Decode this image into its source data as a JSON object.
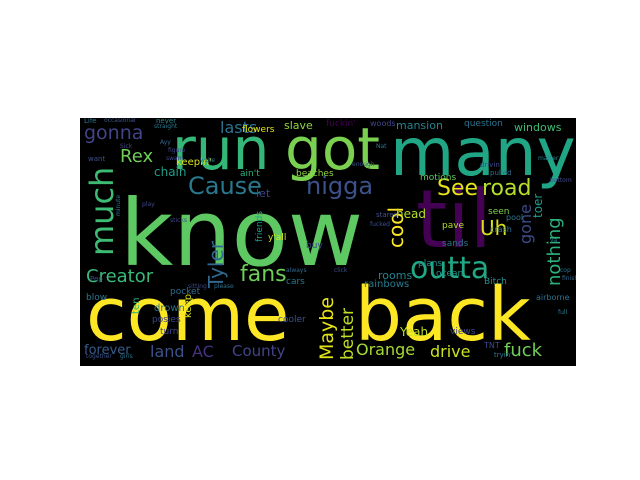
{
  "figure": {
    "background_color": "#ffffff",
    "cloud_background_color": "#000000"
  },
  "word_cloud": {
    "words": [
      {
        "key": "come",
        "text": "come",
        "color": "#fde725"
      },
      {
        "key": "back",
        "text": "back",
        "color": "#fde725"
      },
      {
        "key": "know",
        "text": "know",
        "color": "#5ec962"
      },
      {
        "key": "many",
        "text": "many",
        "color": "#21a685"
      },
      {
        "key": "got",
        "text": "got",
        "color": "#7ad151"
      },
      {
        "key": "run",
        "text": "run",
        "color": "#35b779"
      },
      {
        "key": "til",
        "text": "til",
        "color": "#440154"
      },
      {
        "key": "outta",
        "text": "outta",
        "color": "#22a884"
      },
      {
        "key": "much",
        "text": "much",
        "color": "#3fbc73"
      },
      {
        "key": "nigga",
        "text": "nigga",
        "color": "#3b528b"
      },
      {
        "key": "Cause",
        "text": "Cause",
        "color": "#2a788e"
      },
      {
        "key": "See",
        "text": "See",
        "color": "#e5e419"
      },
      {
        "key": "road",
        "text": "road",
        "color": "#b5de2b"
      },
      {
        "key": "gonna",
        "text": "gonna",
        "color": "#414487"
      },
      {
        "key": "Rex",
        "text": "Rex",
        "color": "#6ece58"
      },
      {
        "key": "lasts",
        "text": "lasts",
        "color": "#2c728e"
      },
      {
        "key": "Creator",
        "text": "Creator",
        "color": "#38b977"
      },
      {
        "key": "Tyler",
        "text": "Tyler",
        "color": "#31688e"
      },
      {
        "key": "fans",
        "text": "fans",
        "color": "#6ece58"
      },
      {
        "key": "cool",
        "text": "cool",
        "color": "#fde725"
      },
      {
        "key": "Uh",
        "text": "Uh",
        "color": "#d8e219"
      },
      {
        "key": "gone",
        "text": "gone",
        "color": "#3e4a89"
      },
      {
        "key": "nothing",
        "text": "nothing",
        "color": "#2db27d"
      },
      {
        "key": "toer",
        "text": "toer",
        "color": "#1f9e89"
      },
      {
        "key": "Maybe",
        "text": "Maybe",
        "color": "#e5e419"
      },
      {
        "key": "better",
        "text": "better",
        "color": "#c2df23"
      },
      {
        "key": "Orange",
        "text": "Orange",
        "color": "#a5db36"
      },
      {
        "key": "drive",
        "text": "drive",
        "color": "#cae11f"
      },
      {
        "key": "fuck",
        "text": "fuck",
        "color": "#6ece58"
      },
      {
        "key": "land",
        "text": "land",
        "color": "#3b528b"
      },
      {
        "key": "AC",
        "text": "AC",
        "color": "#46327e"
      },
      {
        "key": "County",
        "text": "County",
        "color": "#414487"
      },
      {
        "key": "forever",
        "text": "forever",
        "color": "#365c8d"
      },
      {
        "key": "Yeah",
        "text": "Yeah",
        "color": "#bddf26"
      },
      {
        "key": "head",
        "text": "head",
        "color": "#b5de2b"
      },
      {
        "key": "keepin",
        "text": "keepin'",
        "color": "#d8e219"
      },
      {
        "key": "chain",
        "text": "chain",
        "color": "#1f9e89"
      },
      {
        "key": "let",
        "text": "let",
        "color": "#414487"
      },
      {
        "key": "keep",
        "text": "keep",
        "color": "#d8e219"
      },
      {
        "key": "rooms",
        "text": "rooms",
        "color": "#26828e"
      },
      {
        "key": "rainbows",
        "text": "rainbows",
        "color": "#287c8e"
      },
      {
        "key": "drown",
        "text": "drown",
        "color": "#2c728e"
      },
      {
        "key": "posies",
        "text": "posies",
        "color": "#404688"
      },
      {
        "key": "turn",
        "text": "turn",
        "color": "#3e4989"
      },
      {
        "key": "ten",
        "text": "ten",
        "color": "#35b779"
      },
      {
        "key": "pocket",
        "text": "pocket",
        "color": "#2e6e8e"
      },
      {
        "key": "blow",
        "text": "blow",
        "color": "#2a788e"
      },
      {
        "key": "slave",
        "text": "slave",
        "color": "#8fd744"
      },
      {
        "key": "mansion",
        "text": "mansion",
        "color": "#25848e"
      },
      {
        "key": "windows",
        "text": "windows",
        "color": "#3fbc73"
      },
      {
        "key": "flowers",
        "text": "flowers",
        "color": "#e5e419"
      },
      {
        "key": "motions",
        "text": "motions",
        "color": "#5ec962"
      },
      {
        "key": "plans",
        "text": "plans",
        "color": "#1f958b"
      },
      {
        "key": "ocean",
        "text": "ocean",
        "color": "#1f988b"
      },
      {
        "key": "seen",
        "text": "seen",
        "color": "#7ad151"
      },
      {
        "key": "pave",
        "text": "pave",
        "color": "#b5de2b"
      },
      {
        "key": "sands",
        "text": "sands",
        "color": "#2c728e"
      },
      {
        "key": "views",
        "text": "views",
        "color": "#3e4a89"
      },
      {
        "key": "cooler",
        "text": "cooler",
        "color": "#3b528b"
      },
      {
        "key": "cars",
        "text": "cars",
        "color": "#2a788e"
      },
      {
        "key": "buy",
        "text": "buy",
        "color": "#3e4989"
      },
      {
        "key": "friends",
        "text": "friends",
        "color": "#1f9e89"
      },
      {
        "key": "aint",
        "text": "ain't",
        "color": "#2db27d"
      },
      {
        "key": "beaches",
        "text": "beaches",
        "color": "#8fd744"
      },
      {
        "key": "yall",
        "text": "y'all",
        "color": "#d8e219"
      },
      {
        "key": "woods",
        "text": "woods",
        "color": "#404688"
      },
      {
        "key": "question",
        "text": "question",
        "color": "#2c728e"
      },
      {
        "key": "fuckin",
        "text": "fuckin'",
        "color": "#440154"
      },
      {
        "key": "Bitch",
        "text": "Bitch",
        "color": "#21918c"
      },
      {
        "key": "TNT",
        "text": "TNT",
        "color": "#3e4989"
      },
      {
        "key": "tryin",
        "text": "tryin'",
        "color": "#2a788e"
      },
      {
        "key": "airborne",
        "text": "airborne",
        "color": "#2c728e"
      },
      {
        "key": "stares",
        "text": "stares",
        "color": "#3b528b"
      },
      {
        "key": "crash",
        "text": "crash",
        "color": "#2c728e"
      },
      {
        "key": "pool",
        "text": "pool",
        "color": "#2a788e"
      },
      {
        "key": "pulled",
        "text": "pulled",
        "color": "#31688e"
      },
      {
        "key": "drivin",
        "text": "drivin",
        "color": "#3e4989"
      },
      {
        "key": "enough",
        "text": "enough",
        "color": "#3b528b"
      },
      {
        "key": "figure",
        "text": "figure",
        "color": "#404688"
      },
      {
        "key": "straight",
        "text": "straight",
        "color": "#2a788e"
      },
      {
        "key": "never",
        "text": "never",
        "color": "#26828e"
      },
      {
        "key": "Life",
        "text": "Life",
        "color": "#2c728e"
      },
      {
        "key": "occasional",
        "text": "occasional",
        "color": "#3b528b"
      },
      {
        "key": "Sick",
        "text": "Sick",
        "color": "#3e4989"
      },
      {
        "key": "swam",
        "text": "swam",
        "color": "#404688"
      },
      {
        "key": "write",
        "text": "write",
        "color": "#2a788e"
      },
      {
        "key": "want",
        "text": "want",
        "color": "#3b528b"
      },
      {
        "key": "minute",
        "text": "minute",
        "color": "#2c728e"
      },
      {
        "key": "sitting",
        "text": "sitting",
        "color": "#3e4989"
      },
      {
        "key": "always",
        "text": "always",
        "color": "#31688e"
      },
      {
        "key": "together",
        "text": "together",
        "color": "#3b528b"
      },
      {
        "key": "girls",
        "text": "girls",
        "color": "#2c728e"
      },
      {
        "key": "full",
        "text": "full",
        "color": "#2a788e"
      },
      {
        "key": "bottom",
        "text": "bottom",
        "color": "#3e4989"
      },
      {
        "key": "finished",
        "text": "finished",
        "color": "#31688e"
      },
      {
        "key": "matter",
        "text": "matter",
        "color": "#26828e"
      },
      {
        "key": "fucked",
        "text": "fucked",
        "color": "#3b528b"
      },
      {
        "key": "please",
        "text": "please",
        "color": "#2c728e"
      },
      {
        "key": "play",
        "text": "play",
        "color": "#404688"
      },
      {
        "key": "sticks",
        "text": "sticks",
        "color": "#3e4989"
      },
      {
        "key": "click",
        "text": "click",
        "color": "#3b528b"
      },
      {
        "key": "Nat",
        "text": "Nat",
        "color": "#2a788e"
      },
      {
        "key": "Ayy",
        "text": "Ayy",
        "color": "#31688e"
      },
      {
        "key": "cop",
        "text": "cop",
        "color": "#2c728e"
      },
      {
        "key": "Pep",
        "text": "Pep",
        "color": "#3e4989"
      },
      {
        "key": "ya",
        "text": "ya",
        "color": "#2a788e"
      }
    ]
  }
}
